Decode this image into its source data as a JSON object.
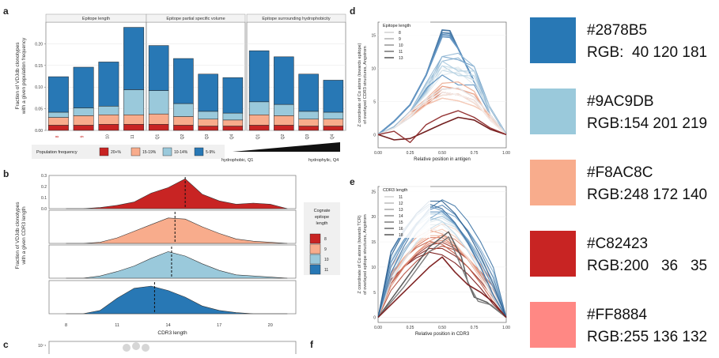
{
  "panels": {
    "a": "a",
    "b": "b",
    "c": "c",
    "d": "d",
    "e": "e",
    "f": "f"
  },
  "panel_a": {
    "ylabel": "Fraction of VDJdb clonotypes\nwith a given population frequency",
    "facets": [
      {
        "title": "Epitope length",
        "categories": [
          "8",
          "9",
          "10",
          "11"
        ],
        "stacks": [
          [
            0.012,
            0.018,
            0.012,
            0.082
          ],
          [
            0.012,
            0.022,
            0.018,
            0.094
          ],
          [
            0.014,
            0.022,
            0.02,
            0.102
          ],
          [
            0.014,
            0.022,
            0.058,
            0.144
          ]
        ]
      },
      {
        "title": "Epitope partial specific volume",
        "categories": [
          "Q1",
          "Q2",
          "Q3",
          "Q4"
        ],
        "stacks": [
          [
            0.014,
            0.024,
            0.054,
            0.104
          ],
          [
            0.012,
            0.02,
            0.03,
            0.104
          ],
          [
            0.01,
            0.016,
            0.018,
            0.086
          ],
          [
            0.01,
            0.014,
            0.016,
            0.082
          ]
        ]
      },
      {
        "title": "Epitope surrounding hydrophobicity",
        "categories": [
          "Q1",
          "Q2",
          "Q3",
          "Q4"
        ],
        "stacks": [
          [
            0.012,
            0.024,
            0.03,
            0.118
          ],
          [
            0.012,
            0.022,
            0.026,
            0.11
          ],
          [
            0.01,
            0.016,
            0.018,
            0.086
          ],
          [
            0.01,
            0.016,
            0.016,
            0.074
          ]
        ]
      }
    ],
    "yticks": [
      "0.00",
      "0.05",
      "0.10",
      "0.15",
      "0.20"
    ],
    "legend_title": "Population frequency",
    "legend_items": [
      {
        "label": "20+%",
        "color": "#C82423"
      },
      {
        "label": "15-19%",
        "color": "#F8AC8C"
      },
      {
        "label": "10-14%",
        "color": "#9AC9DB"
      },
      {
        "label": "5-9%",
        "color": "#2878B5"
      }
    ],
    "scale_left": "hydrophobic, Q1",
    "scale_right": "hydrophylic, Q4"
  },
  "panel_b": {
    "ylabel": "Fraction of VDJdb clonotypes\nwith a given CDR3 length",
    "xlabel": "CDR3 length",
    "xticks": [
      "8",
      "11",
      "14",
      "17",
      "20"
    ],
    "yticks": [
      "0.0",
      "0.1",
      "0.2",
      "0.3"
    ],
    "legend_title": "Cognate\nepitope\nlength",
    "legend_items": [
      {
        "label": "8",
        "color": "#C82423"
      },
      {
        "label": "9",
        "color": "#F8AC8C"
      },
      {
        "label": "10",
        "color": "#9AC9DB"
      },
      {
        "label": "11",
        "color": "#2878B5"
      }
    ]
  },
  "panel_c": {
    "ytick": "10⁻¹"
  },
  "panel_d": {
    "ylabel": "Z coordinate of Cα atoms (towards epitope)\nof overlayed CDR3 structures, Angstrom",
    "xlabel": "Relative position in antigen",
    "xticks": [
      "0.00",
      "0.25",
      "0.50",
      "0.75",
      "1.00"
    ],
    "yticks": [
      "0",
      "5",
      "10",
      "15"
    ],
    "legend_title": "Epitope length",
    "legend_items": [
      "8",
      "9",
      "10",
      "11",
      "13"
    ]
  },
  "panel_e": {
    "ylabel": "Z coordinate of Cα atoms (towards TCR)\nof overlayed epitope structures, Angstrom",
    "xlabel": "Relative position in CDR3",
    "xticks": [
      "0.00",
      "0.25",
      "0.50",
      "0.75",
      "1.00"
    ],
    "yticks": [
      "0",
      "5",
      "10",
      "15",
      "20",
      "25"
    ],
    "legend_title": "CDR3 length",
    "legend_items": [
      "11",
      "12",
      "13",
      "14",
      "15",
      "16",
      "18"
    ]
  },
  "swatches": [
    {
      "hex": "#2878B5",
      "rgb": "RGB:  40 120 181",
      "color": "#2878B5"
    },
    {
      "hex": "#9AC9DB",
      "rgb": "RGB:154 201 219",
      "color": "#9AC9DB"
    },
    {
      "hex": "#F8AC8C",
      "rgb": "RGB:248 172 140",
      "color": "#F8AC8C"
    },
    {
      "hex": "#C82423",
      "rgb": "RGB:200   36   35",
      "color": "#C82423"
    },
    {
      "hex": "#FF8884",
      "rgb": "RGB:255 136 132",
      "color": "#FF8884"
    }
  ],
  "chart_data": [
    {
      "type": "bar",
      "title": "",
      "ylabel": "Fraction of VDJdb clonotypes with a given population frequency",
      "series": [
        {
          "name": "20+%"
        },
        {
          "name": "15-19%"
        },
        {
          "name": "10-14%"
        },
        {
          "name": "5-9%"
        }
      ],
      "facets": [
        "Epitope length",
        "Epitope partial specific volume",
        "Epitope surrounding hydrophobicity"
      ],
      "ylim": [
        0,
        0.25
      ]
    },
    {
      "type": "area",
      "xlabel": "CDR3 length",
      "ylabel": "Fraction of VDJdb clonotypes with a given CDR3 length",
      "x": [
        8,
        9,
        10,
        11,
        12,
        13,
        14,
        15,
        16,
        17,
        18,
        19,
        20,
        21
      ],
      "series": [
        {
          "name": "8",
          "values": [
            0,
            0,
            0.01,
            0.03,
            0.06,
            0.14,
            0.19,
            0.27,
            0.13,
            0.07,
            0.04,
            0.05,
            0.04,
            0
          ]
        },
        {
          "name": "9",
          "values": [
            0,
            0,
            0.01,
            0.05,
            0.11,
            0.17,
            0.23,
            0.22,
            0.15,
            0.09,
            0.04,
            0.02,
            0.01,
            0
          ]
        },
        {
          "name": "10",
          "values": [
            0,
            0,
            0.02,
            0.06,
            0.11,
            0.18,
            0.24,
            0.2,
            0.13,
            0.07,
            0.03,
            0.02,
            0.01,
            0
          ]
        },
        {
          "name": "11",
          "values": [
            0,
            0,
            0.03,
            0.14,
            0.23,
            0.25,
            0.21,
            0.15,
            0.07,
            0.03,
            0.01,
            0,
            0,
            0
          ]
        }
      ],
      "means": [
        15.0,
        14.4,
        14.2,
        13.2
      ],
      "ylim": [
        0,
        0.3
      ]
    },
    {
      "type": "line",
      "xlabel": "Relative position in antigen",
      "xlim": [
        0,
        1
      ],
      "ylim": [
        -2,
        17
      ]
    },
    {
      "type": "line",
      "xlabel": "Relative position in CDR3",
      "xlim": [
        0,
        1
      ],
      "ylim": [
        -2,
        26
      ]
    }
  ]
}
